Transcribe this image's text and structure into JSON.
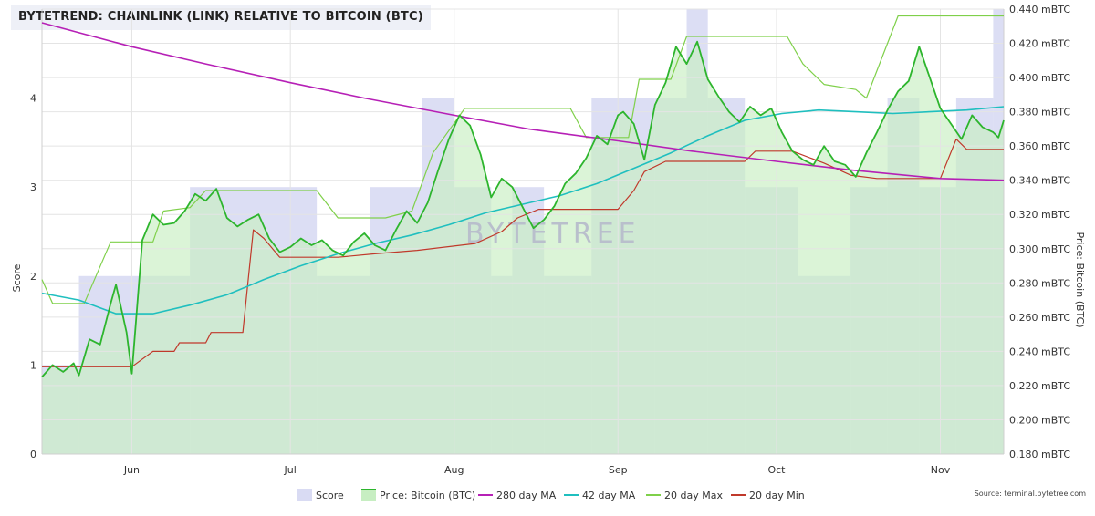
{
  "title": "BYTETREND: CHAINLINK (LINK) RELATIVE TO BITCOIN (BTC)",
  "watermark": "BYTETREE",
  "source": "Source: terminal.bytetree.com",
  "chart_data": {
    "type": "line",
    "x_range": [
      "2020-05-15",
      "2020-11-13"
    ],
    "x_ticks": [
      {
        "label": "Jun",
        "date": "2020-06-01"
      },
      {
        "label": "Jul",
        "date": "2020-07-01"
      },
      {
        "label": "Aug",
        "date": "2020-08-01"
      },
      {
        "label": "Sep",
        "date": "2020-09-01"
      },
      {
        "label": "Oct",
        "date": "2020-10-01"
      },
      {
        "label": "Nov",
        "date": "2020-11-01"
      }
    ],
    "y_left": {
      "label": "Score",
      "min": 0,
      "max": 5,
      "ticks": [
        "0",
        "1",
        "2",
        "3",
        "4"
      ]
    },
    "y_right": {
      "label": "Price: Bitcoin (BTC)",
      "min": 0.18,
      "max": 0.44,
      "ticks": [
        "0.180 mBTC",
        "0.200 mBTC",
        "0.220 mBTC",
        "0.240 mBTC",
        "0.260 mBTC",
        "0.280 mBTC",
        "0.300 mBTC",
        "0.320 mBTC",
        "0.340 mBTC",
        "0.360 mBTC",
        "0.380 mBTC",
        "0.400 mBTC",
        "0.420 mBTC",
        "0.440 mBTC"
      ]
    },
    "grid": true,
    "legend_position": "bottom-center",
    "legend": [
      {
        "name": "Score",
        "color": "#d9dbf3",
        "symbol": "box"
      },
      {
        "name": "Price: Bitcoin (BTC)",
        "color": "#2db52d",
        "symbol": "box-line"
      },
      {
        "name": "280 day MA",
        "color": "#b620b6",
        "symbol": "line"
      },
      {
        "name": "42 day MA",
        "color": "#1fbfbf",
        "symbol": "line"
      },
      {
        "name": "20 day Max",
        "color": "#7fd04a",
        "symbol": "line"
      },
      {
        "name": "20 day Min",
        "color": "#c0392b",
        "symbol": "line"
      }
    ],
    "score_series": {
      "name": "Score",
      "segments": [
        {
          "start": "2020-05-15",
          "end": "2020-05-22",
          "value": 1
        },
        {
          "start": "2020-05-22",
          "end": "2020-06-12",
          "value": 2
        },
        {
          "start": "2020-06-12",
          "end": "2020-07-06",
          "value": 3
        },
        {
          "start": "2020-07-06",
          "end": "2020-07-16",
          "value": 2
        },
        {
          "start": "2020-07-16",
          "end": "2020-07-20",
          "value": 3
        },
        {
          "start": "2020-07-20",
          "end": "2020-07-26",
          "value": 3
        },
        {
          "start": "2020-07-26",
          "end": "2020-08-01",
          "value": 4
        },
        {
          "start": "2020-08-01",
          "end": "2020-08-08",
          "value": 3
        },
        {
          "start": "2020-08-08",
          "end": "2020-08-12",
          "value": 2
        },
        {
          "start": "2020-08-12",
          "end": "2020-08-18",
          "value": 3
        },
        {
          "start": "2020-08-18",
          "end": "2020-08-27",
          "value": 2
        },
        {
          "start": "2020-08-27",
          "end": "2020-09-08",
          "value": 4
        },
        {
          "start": "2020-09-08",
          "end": "2020-09-14",
          "value": 4
        },
        {
          "start": "2020-09-14",
          "end": "2020-09-18",
          "value": 5
        },
        {
          "start": "2020-09-18",
          "end": "2020-09-25",
          "value": 4
        },
        {
          "start": "2020-09-25",
          "end": "2020-10-05",
          "value": 3
        },
        {
          "start": "2020-10-05",
          "end": "2020-10-15",
          "value": 2
        },
        {
          "start": "2020-10-15",
          "end": "2020-10-22",
          "value": 3
        },
        {
          "start": "2020-10-22",
          "end": "2020-10-28",
          "value": 4
        },
        {
          "start": "2020-10-28",
          "end": "2020-11-04",
          "value": 3
        },
        {
          "start": "2020-11-04",
          "end": "2020-11-11",
          "value": 4
        },
        {
          "start": "2020-11-11",
          "end": "2020-11-13",
          "value": 5
        }
      ]
    },
    "series": [
      {
        "name": "Price: Bitcoin (BTC)",
        "color": "#2db52d",
        "area_color": "#c7eec2",
        "points": [
          [
            "2020-05-15",
            0.225
          ],
          [
            "2020-05-17",
            0.232
          ],
          [
            "2020-05-19",
            0.228
          ],
          [
            "2020-05-21",
            0.233
          ],
          [
            "2020-05-22",
            0.226
          ],
          [
            "2020-05-24",
            0.247
          ],
          [
            "2020-05-26",
            0.244
          ],
          [
            "2020-05-28",
            0.268
          ],
          [
            "2020-05-29",
            0.279
          ],
          [
            "2020-05-31",
            0.251
          ],
          [
            "2020-06-01",
            0.227
          ],
          [
            "2020-06-03",
            0.305
          ],
          [
            "2020-06-05",
            0.32
          ],
          [
            "2020-06-07",
            0.314
          ],
          [
            "2020-06-09",
            0.315
          ],
          [
            "2020-06-11",
            0.322
          ],
          [
            "2020-06-13",
            0.332
          ],
          [
            "2020-06-15",
            0.328
          ],
          [
            "2020-06-17",
            0.335
          ],
          [
            "2020-06-19",
            0.318
          ],
          [
            "2020-06-21",
            0.313
          ],
          [
            "2020-06-23",
            0.317
          ],
          [
            "2020-06-25",
            0.32
          ],
          [
            "2020-06-27",
            0.306
          ],
          [
            "2020-06-29",
            0.298
          ],
          [
            "2020-07-01",
            0.301
          ],
          [
            "2020-07-03",
            0.306
          ],
          [
            "2020-07-05",
            0.302
          ],
          [
            "2020-07-07",
            0.305
          ],
          [
            "2020-07-09",
            0.299
          ],
          [
            "2020-07-11",
            0.296
          ],
          [
            "2020-07-13",
            0.304
          ],
          [
            "2020-07-15",
            0.309
          ],
          [
            "2020-07-17",
            0.302
          ],
          [
            "2020-07-19",
            0.299
          ],
          [
            "2020-07-21",
            0.311
          ],
          [
            "2020-07-23",
            0.322
          ],
          [
            "2020-07-25",
            0.315
          ],
          [
            "2020-07-27",
            0.327
          ],
          [
            "2020-07-29",
            0.346
          ],
          [
            "2020-07-31",
            0.364
          ],
          [
            "2020-08-02",
            0.378
          ],
          [
            "2020-08-04",
            0.372
          ],
          [
            "2020-08-06",
            0.355
          ],
          [
            "2020-08-08",
            0.33
          ],
          [
            "2020-08-10",
            0.341
          ],
          [
            "2020-08-12",
            0.336
          ],
          [
            "2020-08-14",
            0.324
          ],
          [
            "2020-08-16",
            0.312
          ],
          [
            "2020-08-18",
            0.317
          ],
          [
            "2020-08-20",
            0.325
          ],
          [
            "2020-08-22",
            0.338
          ],
          [
            "2020-08-24",
            0.344
          ],
          [
            "2020-08-26",
            0.353
          ],
          [
            "2020-08-28",
            0.366
          ],
          [
            "2020-08-30",
            0.361
          ],
          [
            "2020-09-01",
            0.378
          ],
          [
            "2020-09-02",
            0.38
          ],
          [
            "2020-09-04",
            0.373
          ],
          [
            "2020-09-06",
            0.352
          ],
          [
            "2020-09-08",
            0.384
          ],
          [
            "2020-09-10",
            0.397
          ],
          [
            "2020-09-12",
            0.418
          ],
          [
            "2020-09-14",
            0.408
          ],
          [
            "2020-09-16",
            0.421
          ],
          [
            "2020-09-18",
            0.399
          ],
          [
            "2020-09-20",
            0.389
          ],
          [
            "2020-09-22",
            0.38
          ],
          [
            "2020-09-24",
            0.374
          ],
          [
            "2020-09-26",
            0.383
          ],
          [
            "2020-09-28",
            0.378
          ],
          [
            "2020-09-30",
            0.382
          ],
          [
            "2020-10-02",
            0.368
          ],
          [
            "2020-10-04",
            0.357
          ],
          [
            "2020-10-06",
            0.352
          ],
          [
            "2020-10-08",
            0.349
          ],
          [
            "2020-10-10",
            0.36
          ],
          [
            "2020-10-12",
            0.351
          ],
          [
            "2020-10-14",
            0.349
          ],
          [
            "2020-10-16",
            0.342
          ],
          [
            "2020-10-18",
            0.356
          ],
          [
            "2020-10-20",
            0.368
          ],
          [
            "2020-10-22",
            0.381
          ],
          [
            "2020-10-24",
            0.392
          ],
          [
            "2020-10-26",
            0.398
          ],
          [
            "2020-10-28",
            0.418
          ],
          [
            "2020-10-30",
            0.4
          ],
          [
            "2020-11-01",
            0.382
          ],
          [
            "2020-11-03",
            0.373
          ],
          [
            "2020-11-05",
            0.364
          ],
          [
            "2020-11-07",
            0.378
          ],
          [
            "2020-11-09",
            0.371
          ],
          [
            "2020-11-11",
            0.368
          ],
          [
            "2020-11-12",
            0.365
          ],
          [
            "2020-11-13",
            0.375
          ]
        ]
      },
      {
        "name": "280 day MA",
        "color": "#b620b6",
        "points": [
          [
            "2020-05-15",
            0.432
          ],
          [
            "2020-06-01",
            0.418
          ],
          [
            "2020-06-15",
            0.408
          ],
          [
            "2020-07-01",
            0.397
          ],
          [
            "2020-07-15",
            0.388
          ],
          [
            "2020-08-01",
            0.378
          ],
          [
            "2020-08-15",
            0.37
          ],
          [
            "2020-09-01",
            0.363
          ],
          [
            "2020-09-15",
            0.357
          ],
          [
            "2020-10-01",
            0.351
          ],
          [
            "2020-10-15",
            0.346
          ],
          [
            "2020-11-01",
            0.341
          ],
          [
            "2020-11-13",
            0.34
          ]
        ]
      },
      {
        "name": "42 day MA",
        "color": "#1fbfbf",
        "points": [
          [
            "2020-05-15",
            0.274
          ],
          [
            "2020-05-22",
            0.27
          ],
          [
            "2020-05-29",
            0.262
          ],
          [
            "2020-06-05",
            0.262
          ],
          [
            "2020-06-12",
            0.267
          ],
          [
            "2020-06-19",
            0.273
          ],
          [
            "2020-06-26",
            0.282
          ],
          [
            "2020-07-03",
            0.29
          ],
          [
            "2020-07-10",
            0.297
          ],
          [
            "2020-07-17",
            0.303
          ],
          [
            "2020-07-24",
            0.308
          ],
          [
            "2020-07-31",
            0.314
          ],
          [
            "2020-08-07",
            0.321
          ],
          [
            "2020-08-14",
            0.326
          ],
          [
            "2020-08-21",
            0.331
          ],
          [
            "2020-08-28",
            0.338
          ],
          [
            "2020-09-04",
            0.347
          ],
          [
            "2020-09-11",
            0.356
          ],
          [
            "2020-09-18",
            0.366
          ],
          [
            "2020-09-25",
            0.375
          ],
          [
            "2020-10-02",
            0.379
          ],
          [
            "2020-10-09",
            0.381
          ],
          [
            "2020-10-16",
            0.38
          ],
          [
            "2020-10-23",
            0.379
          ],
          [
            "2020-10-30",
            0.38
          ],
          [
            "2020-11-06",
            0.381
          ],
          [
            "2020-11-13",
            0.383
          ]
        ]
      },
      {
        "name": "20 day Max",
        "color": "#7fd04a",
        "points": [
          [
            "2020-05-15",
            0.282
          ],
          [
            "2020-05-17",
            0.268
          ],
          [
            "2020-05-23",
            0.268
          ],
          [
            "2020-05-28",
            0.304
          ],
          [
            "2020-06-05",
            0.304
          ],
          [
            "2020-06-07",
            0.322
          ],
          [
            "2020-06-12",
            0.324
          ],
          [
            "2020-06-15",
            0.334
          ],
          [
            "2020-07-06",
            0.334
          ],
          [
            "2020-07-10",
            0.318
          ],
          [
            "2020-07-19",
            0.318
          ],
          [
            "2020-07-24",
            0.322
          ],
          [
            "2020-07-28",
            0.356
          ],
          [
            "2020-08-03",
            0.382
          ],
          [
            "2020-08-23",
            0.382
          ],
          [
            "2020-08-26",
            0.365
          ],
          [
            "2020-09-03",
            0.365
          ],
          [
            "2020-09-05",
            0.399
          ],
          [
            "2020-09-11",
            0.399
          ],
          [
            "2020-09-14",
            0.424
          ],
          [
            "2020-10-03",
            0.424
          ],
          [
            "2020-10-06",
            0.408
          ],
          [
            "2020-10-10",
            0.396
          ],
          [
            "2020-10-16",
            0.393
          ],
          [
            "2020-10-18",
            0.388
          ],
          [
            "2020-10-24",
            0.436
          ],
          [
            "2020-11-13",
            0.436
          ]
        ]
      },
      {
        "name": "20 day Min",
        "color": "#c0392b",
        "points": [
          [
            "2020-05-15",
            0.231
          ],
          [
            "2020-06-01",
            0.231
          ],
          [
            "2020-06-05",
            0.24
          ],
          [
            "2020-06-09",
            0.24
          ],
          [
            "2020-06-10",
            0.245
          ],
          [
            "2020-06-15",
            0.245
          ],
          [
            "2020-06-16",
            0.251
          ],
          [
            "2020-06-22",
            0.251
          ],
          [
            "2020-06-24",
            0.311
          ],
          [
            "2020-06-26",
            0.306
          ],
          [
            "2020-06-29",
            0.295
          ],
          [
            "2020-07-10",
            0.295
          ],
          [
            "2020-07-17",
            0.297
          ],
          [
            "2020-07-25",
            0.299
          ],
          [
            "2020-08-05",
            0.303
          ],
          [
            "2020-08-10",
            0.31
          ],
          [
            "2020-08-13",
            0.318
          ],
          [
            "2020-08-17",
            0.323
          ],
          [
            "2020-09-01",
            0.323
          ],
          [
            "2020-09-04",
            0.334
          ],
          [
            "2020-09-06",
            0.345
          ],
          [
            "2020-09-10",
            0.351
          ],
          [
            "2020-09-25",
            0.351
          ],
          [
            "2020-09-27",
            0.357
          ],
          [
            "2020-10-04",
            0.357
          ],
          [
            "2020-10-10",
            0.35
          ],
          [
            "2020-10-15",
            0.343
          ],
          [
            "2020-10-20",
            0.341
          ],
          [
            "2020-11-01",
            0.341
          ],
          [
            "2020-11-04",
            0.364
          ],
          [
            "2020-11-06",
            0.358
          ],
          [
            "2020-11-13",
            0.358
          ]
        ]
      }
    ]
  }
}
